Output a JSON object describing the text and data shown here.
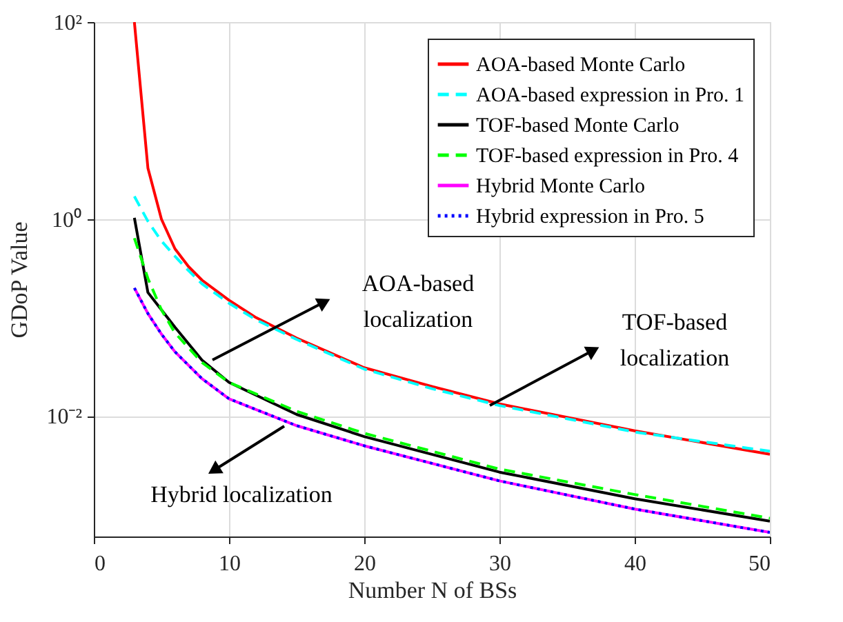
{
  "chart_data": {
    "type": "line",
    "xlabel": "Number N of BSs",
    "ylabel": "GDoP Value",
    "xlim": [
      0,
      50
    ],
    "xticks": [
      0,
      10,
      20,
      30,
      40,
      50
    ],
    "ylim": [
      0.0006,
      100
    ],
    "yticks": [
      {
        "value": 0.01,
        "label": "10⁻²"
      },
      {
        "value": 1,
        "label": "10⁰"
      },
      {
        "value": 100,
        "label": "10²"
      }
    ],
    "log": "y",
    "grid": true,
    "legend": "top right",
    "series": [
      {
        "name": "AOA-based Monte Carlo",
        "color": "#ff0000",
        "line_style": "solid",
        "x": [
          3,
          4,
          5,
          6,
          7,
          8,
          10,
          12,
          15,
          20,
          25,
          30,
          40,
          50
        ],
        "values": [
          100,
          3.3,
          1.0,
          0.5,
          0.33,
          0.24,
          0.15,
          0.1,
          0.062,
          0.031,
          0.02,
          0.0133,
          0.0071,
          0.0041
        ]
      },
      {
        "name": "AOA-based expression in Pro. 1",
        "color": "#00ffff",
        "line_style": "dashed",
        "x": [
          3,
          4,
          5,
          6,
          7,
          8,
          10,
          12,
          15,
          20,
          25,
          30,
          40,
          50
        ],
        "values": [
          1.7,
          0.95,
          0.6,
          0.42,
          0.3,
          0.22,
          0.14,
          0.095,
          0.06,
          0.03,
          0.019,
          0.0128,
          0.0069,
          0.0044
        ]
      },
      {
        "name": "TOF-based Monte Carlo",
        "color": "#000000",
        "line_style": "solid",
        "x": [
          3,
          4,
          5,
          6,
          8,
          10,
          15,
          20,
          30,
          40,
          50
        ],
        "values": [
          1.03,
          0.18,
          0.12,
          0.08,
          0.037,
          0.022,
          0.0104,
          0.0062,
          0.0027,
          0.00145,
          0.00086
        ]
      },
      {
        "name": "TOF-based expression in Pro. 4",
        "color": "#00ff00",
        "line_style": "dashed",
        "x": [
          3,
          4,
          5,
          6,
          8,
          10,
          15,
          20,
          30,
          40,
          50
        ],
        "values": [
          0.64,
          0.25,
          0.12,
          0.07,
          0.035,
          0.022,
          0.0112,
          0.0067,
          0.0029,
          0.0016,
          0.00092
        ]
      },
      {
        "name": "Hybrid Monte Carlo",
        "color": "#ff00ff",
        "line_style": "solid",
        "x": [
          3,
          4,
          5,
          6,
          8,
          10,
          15,
          20,
          30,
          40,
          50
        ],
        "values": [
          0.2,
          0.11,
          0.068,
          0.045,
          0.024,
          0.015,
          0.008,
          0.005,
          0.0022,
          0.00114,
          0.00066
        ]
      },
      {
        "name": "Hybrid expression in Pro. 5",
        "color": "#0000ff",
        "line_style": "dotted",
        "x": [
          3,
          4,
          5,
          6,
          8,
          10,
          15,
          20,
          30,
          40,
          50
        ],
        "values": [
          0.2,
          0.11,
          0.068,
          0.045,
          0.024,
          0.015,
          0.008,
          0.005,
          0.0022,
          0.00114,
          0.00066
        ]
      }
    ],
    "annotations": [
      "AOA-based\nlocalization",
      "TOF-based\nlocalization",
      "Hybrid localization"
    ]
  }
}
